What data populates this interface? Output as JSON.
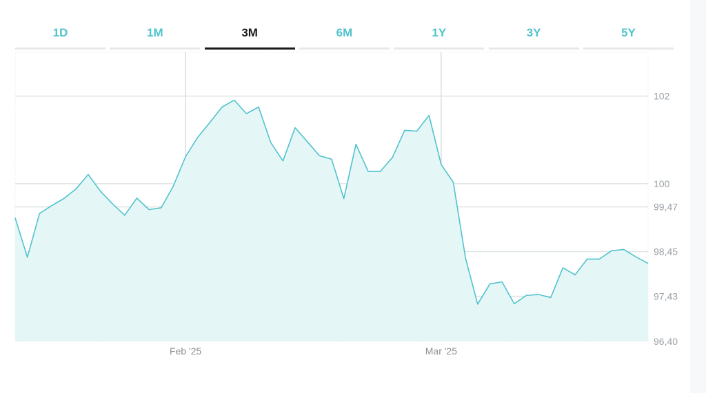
{
  "tabs": [
    {
      "label": "1D",
      "active": false
    },
    {
      "label": "1M",
      "active": false
    },
    {
      "label": "3M",
      "active": true
    },
    {
      "label": "6M",
      "active": false
    },
    {
      "label": "1Y",
      "active": false
    },
    {
      "label": "3Y",
      "active": false
    },
    {
      "label": "5Y",
      "active": false
    }
  ],
  "colors": {
    "line": "#4fc3cd",
    "fill": "#e5f6f7",
    "active_tab": "#1a1a1a",
    "inactive_tab": "#4fc3cd"
  },
  "chart_data": {
    "type": "area",
    "title": "",
    "xlabel": "",
    "ylabel": "",
    "y_ticks": [
      {
        "value": 102,
        "label": "102"
      },
      {
        "value": 100,
        "label": "100"
      },
      {
        "value": 99.47,
        "label": "99,47"
      },
      {
        "value": 98.45,
        "label": "98,45"
      },
      {
        "value": 97.43,
        "label": "97,43"
      },
      {
        "value": 96.4,
        "label": "96,40"
      }
    ],
    "x_ticks": [
      {
        "index": 14,
        "label": "Feb '25"
      },
      {
        "index": 35,
        "label": "Mar '25"
      }
    ],
    "grid": true,
    "series": [
      {
        "values": [
          99.22,
          98.32,
          99.32,
          99.5,
          99.66,
          99.88,
          100.21,
          99.83,
          99.54,
          99.28,
          99.67,
          99.41,
          99.45,
          99.95,
          100.62,
          101.06,
          101.4,
          101.75,
          101.91,
          101.6,
          101.75,
          100.94,
          100.52,
          101.28,
          100.96,
          100.64,
          100.56,
          99.66,
          100.9,
          100.28,
          100.28,
          100.6,
          101.22,
          101.2,
          101.56,
          100.44,
          100.03,
          98.3,
          97.25,
          97.71,
          97.76,
          97.26,
          97.45,
          97.47,
          97.4,
          98.08,
          97.92,
          98.28,
          98.28,
          98.47,
          98.5,
          98.33,
          98.18
        ]
      }
    ]
  }
}
